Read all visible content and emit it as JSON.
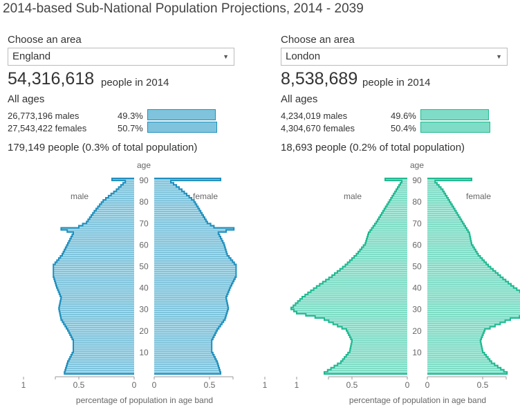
{
  "title": "2014-based Sub-National Population Projections, 2014 - 2039",
  "panels": [
    {
      "choose_label": "Choose an area",
      "selected_area": "England",
      "total": "54,316,618",
      "total_suffix": "people in 2014",
      "age_group": "All ages",
      "males_text": "26,773,196 males",
      "males_pct": "49.3%",
      "males_value": 49.3,
      "females_text": "27,543,422 females",
      "females_pct": "50.7%",
      "females_value": 50.7,
      "highlight_text": "179,149 people (0.3% of total population)",
      "color_fill": "#7fc4dc",
      "color_stroke": "#1f8fbd"
    },
    {
      "choose_label": "Choose an area",
      "selected_area": "London",
      "total": "8,538,689",
      "total_suffix": "people in 2014",
      "age_group": "All ages",
      "males_text": "4,234,019 males",
      "males_pct": "49.6%",
      "males_value": 49.6,
      "females_text": "4,304,670 females",
      "females_pct": "50.4%",
      "females_value": 50.4,
      "highlight_text": "18,693 people (0.2% of total population)",
      "color_fill": "#7fdcc6",
      "color_stroke": "#1fb890"
    }
  ],
  "chart_data": [
    {
      "type": "bar",
      "area": "England",
      "orientation": "horizontal-pyramid",
      "y_label": "age",
      "x_label": "percentage of population in age band",
      "male_label": "male",
      "female_label": "female",
      "age_ticks": [
        "90",
        "80",
        "70",
        "60",
        "50",
        "40",
        "30",
        "20",
        "10"
      ],
      "x_ticks": [
        "1",
        "0.5",
        "0",
        "0",
        "0.5",
        "1"
      ],
      "xlim": [
        0,
        1.2
      ],
      "ages": [
        0,
        5,
        10,
        15,
        20,
        25,
        30,
        35,
        40,
        45,
        50,
        55,
        60,
        65,
        67,
        68,
        70,
        75,
        80,
        85,
        89,
        90
      ],
      "series": [
        {
          "name": "male",
          "values": [
            0.63,
            0.6,
            0.55,
            0.55,
            0.6,
            0.66,
            0.68,
            0.66,
            0.7,
            0.73,
            0.73,
            0.65,
            0.6,
            0.55,
            0.66,
            0.5,
            0.43,
            0.36,
            0.28,
            0.16,
            0.08,
            0.2
          ]
        },
        {
          "name": "female",
          "values": [
            0.6,
            0.57,
            0.52,
            0.52,
            0.57,
            0.64,
            0.67,
            0.65,
            0.69,
            0.74,
            0.74,
            0.66,
            0.63,
            0.58,
            0.72,
            0.54,
            0.48,
            0.42,
            0.36,
            0.25,
            0.15,
            0.6
          ]
        }
      ]
    },
    {
      "type": "bar",
      "area": "London",
      "orientation": "horizontal-pyramid",
      "y_label": "age",
      "x_label": "percentage of population in age band",
      "male_label": "male",
      "female_label": "female",
      "age_ticks": [
        "90",
        "80",
        "70",
        "60",
        "50",
        "40",
        "30",
        "20",
        "10"
      ],
      "x_ticks": [
        "1",
        "0.5",
        "0",
        "0",
        "0.5",
        "1"
      ],
      "xlim": [
        0,
        1.2
      ],
      "ages": [
        0,
        5,
        10,
        15,
        20,
        25,
        28,
        30,
        35,
        40,
        45,
        50,
        55,
        60,
        65,
        70,
        75,
        80,
        85,
        89,
        90
      ],
      "series": [
        {
          "name": "male",
          "values": [
            0.75,
            0.6,
            0.52,
            0.5,
            0.55,
            0.75,
            1.0,
            1.05,
            0.95,
            0.82,
            0.68,
            0.56,
            0.46,
            0.38,
            0.35,
            0.28,
            0.22,
            0.16,
            0.1,
            0.05,
            0.2
          ]
        },
        {
          "name": "female",
          "values": [
            0.72,
            0.58,
            0.5,
            0.48,
            0.52,
            0.75,
            1.0,
            1.03,
            0.92,
            0.78,
            0.66,
            0.55,
            0.46,
            0.4,
            0.38,
            0.32,
            0.26,
            0.2,
            0.14,
            0.07,
            0.4
          ]
        }
      ]
    }
  ]
}
